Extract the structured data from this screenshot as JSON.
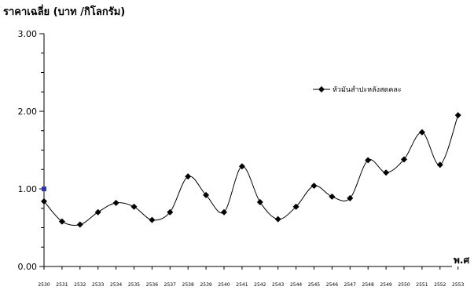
{
  "chart_data": {
    "type": "line",
    "title": "",
    "ylabel": "ราคาเฉลี่ย (บาท /กิโลกรัม)",
    "xlabel": "พ.ศ",
    "ylim": [
      0,
      3
    ],
    "yticks": [
      "0.00",
      "1.00",
      "2.00",
      "3.00"
    ],
    "x": [
      "2530",
      "2531",
      "2532",
      "2533",
      "2534",
      "2535",
      "2536",
      "2537",
      "2538",
      "2539",
      "2540",
      "2541",
      "2542",
      "2543",
      "2544",
      "2545",
      "2546",
      "2547",
      "2548",
      "2549",
      "2550",
      "2551",
      "2552",
      "2553"
    ],
    "series": [
      {
        "name": "หัวมันสำปะหลังสดคละ",
        "color": "#000000",
        "values": [
          0.84,
          0.58,
          0.54,
          0.7,
          0.82,
          0.77,
          0.6,
          0.7,
          1.16,
          0.92,
          0.7,
          1.29,
          0.83,
          0.61,
          0.77,
          1.04,
          0.9,
          0.88,
          1.37,
          1.21,
          1.38,
          1.73,
          1.31,
          1.95
        ]
      }
    ],
    "extra_points": [
      {
        "x": "2530",
        "y": 1.0,
        "color": "#3333aa"
      }
    ],
    "legend_position": "right",
    "grid": false
  }
}
